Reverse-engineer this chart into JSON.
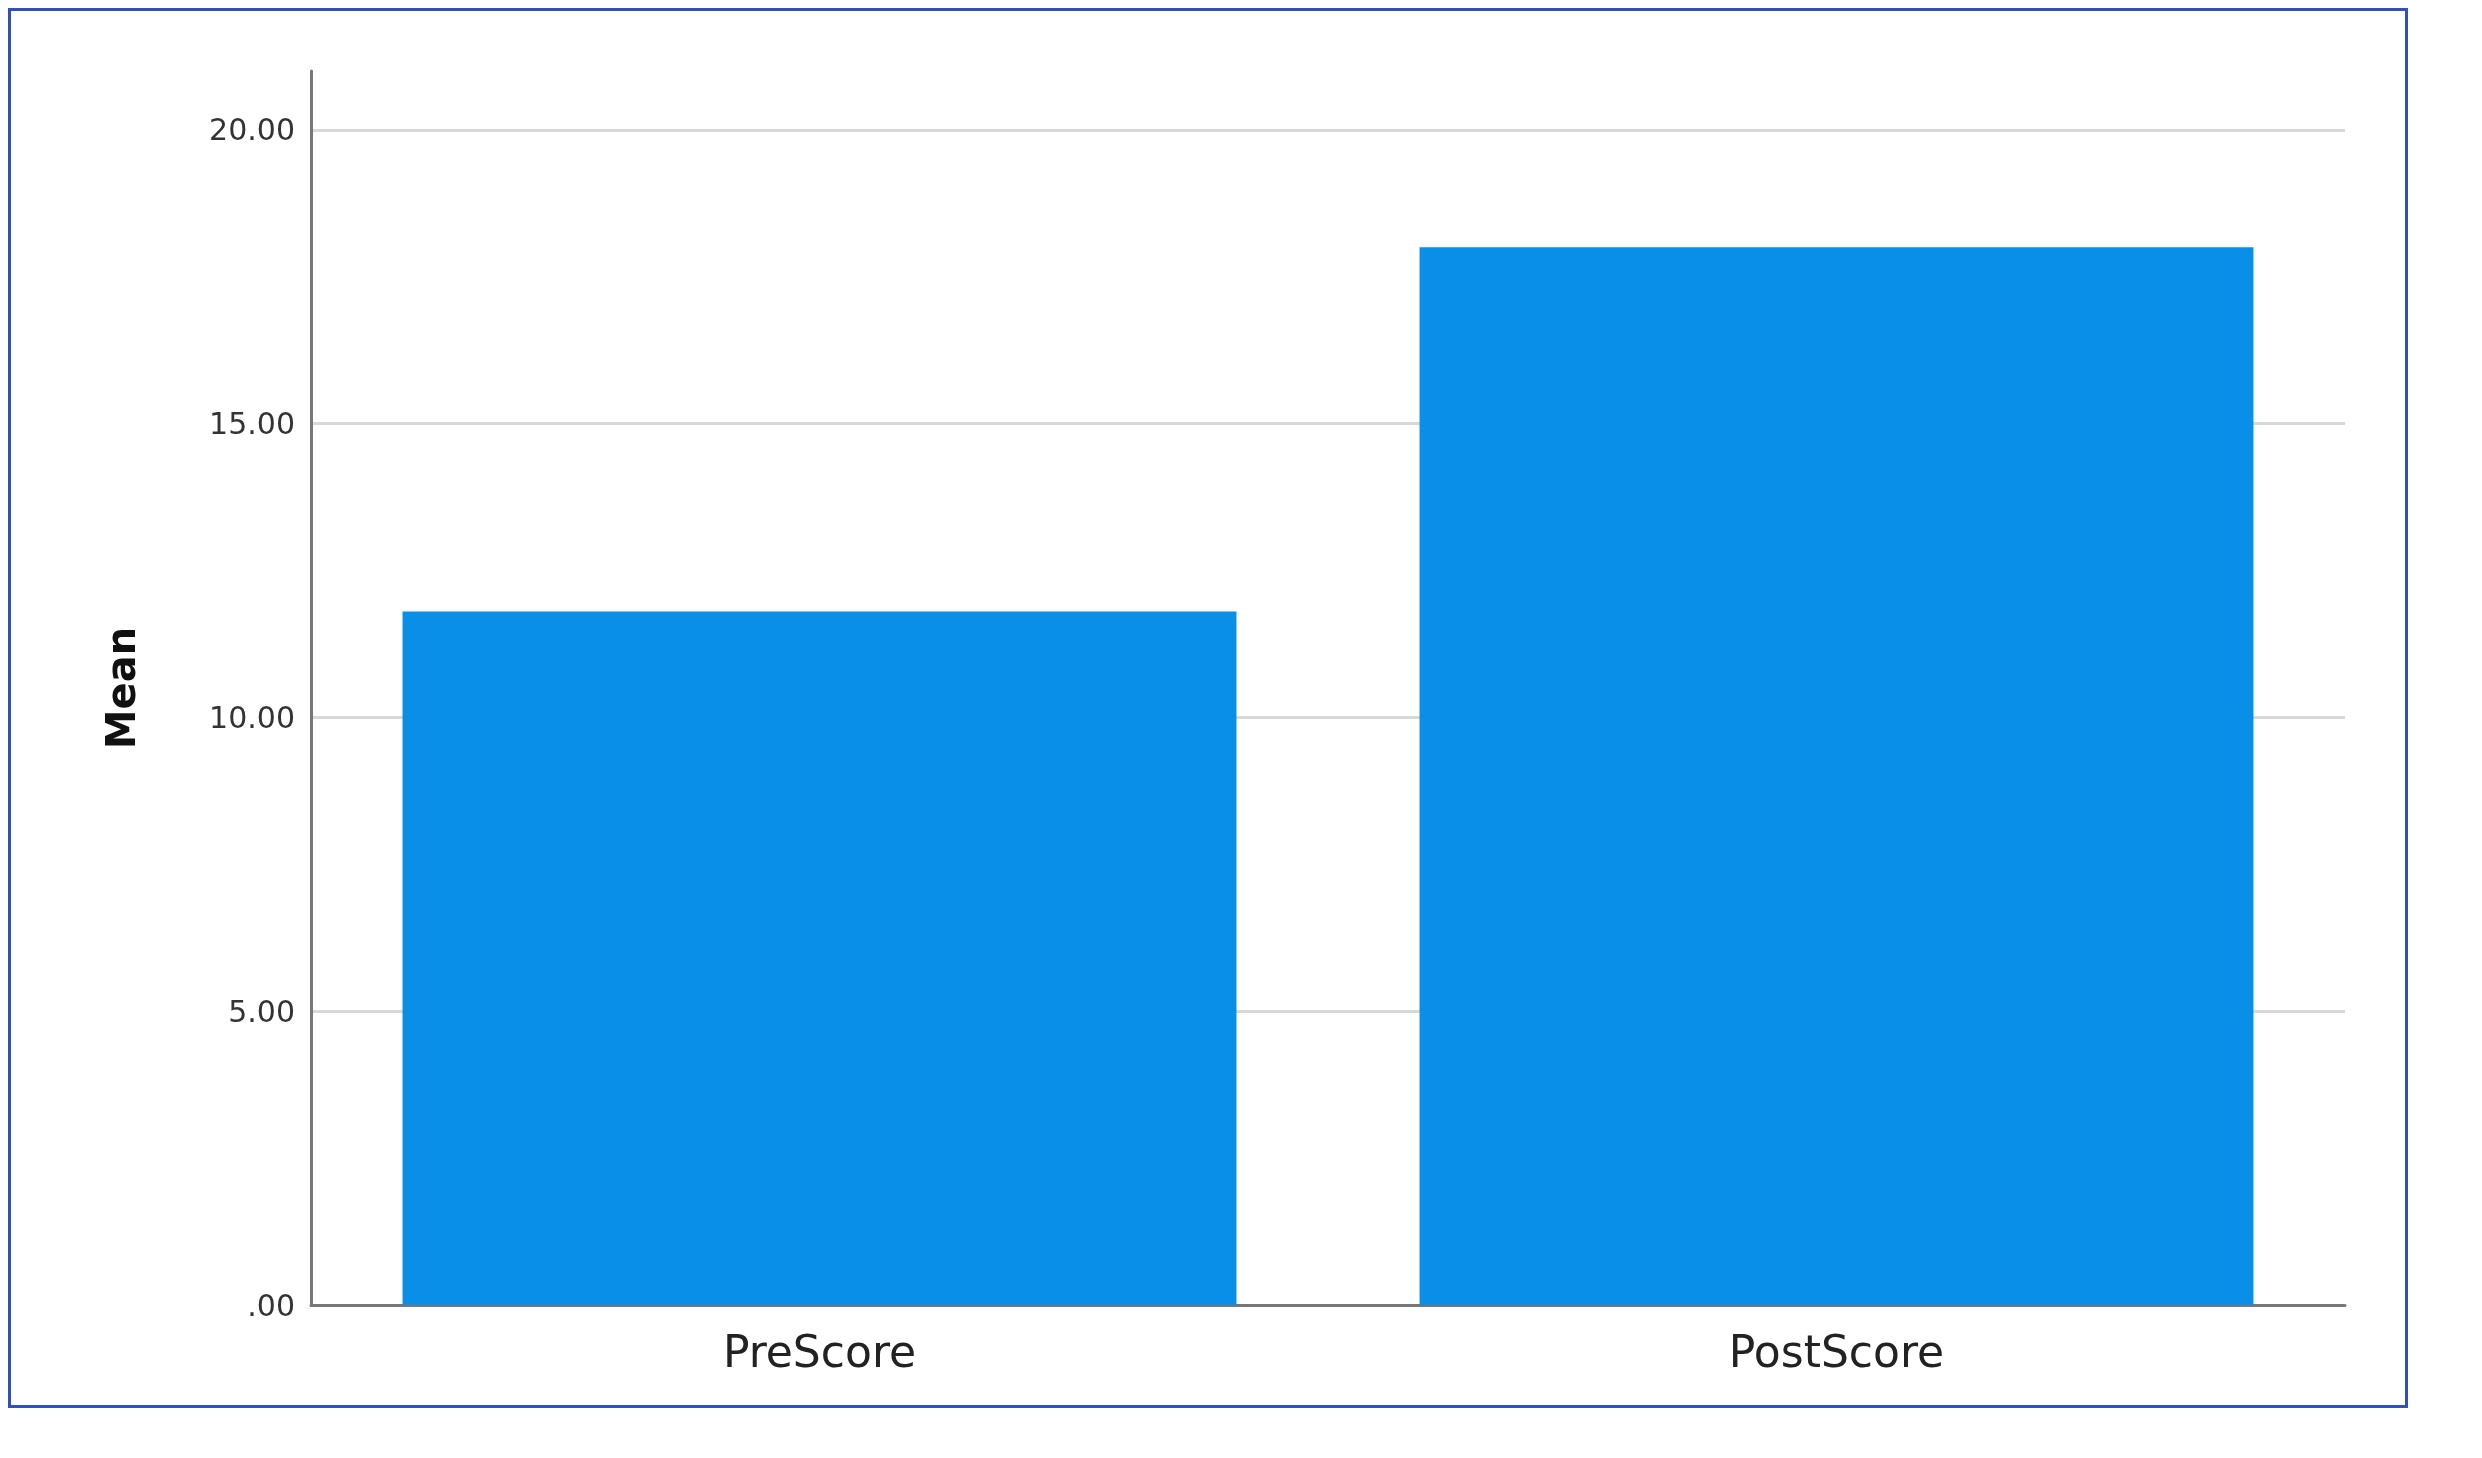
{
  "chart_data": {
    "type": "bar",
    "ylabel": "Mean",
    "categories": [
      "PreScore",
      "PostScore"
    ],
    "values": [
      11.8,
      18.0
    ],
    "color": "#0a8fe8",
    "ylim": [
      0,
      21
    ],
    "yticks": [
      {
        "value": 0,
        "label": ".00"
      },
      {
        "value": 5,
        "label": "5.00"
      },
      {
        "value": 10,
        "label": "10.00"
      },
      {
        "value": 15,
        "label": "15.00"
      },
      {
        "value": 20,
        "label": "20.00"
      }
    ],
    "grid": "y"
  }
}
